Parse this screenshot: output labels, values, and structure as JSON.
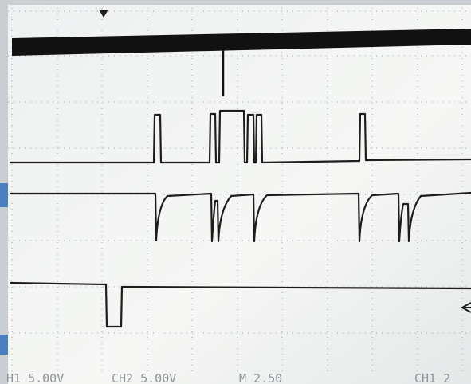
{
  "status_bar": {
    "ch1": "H1 5.00V",
    "ch2": "CH2 5.00V",
    "timebase": "M 2.50",
    "trigger": "CH1 2"
  }
}
